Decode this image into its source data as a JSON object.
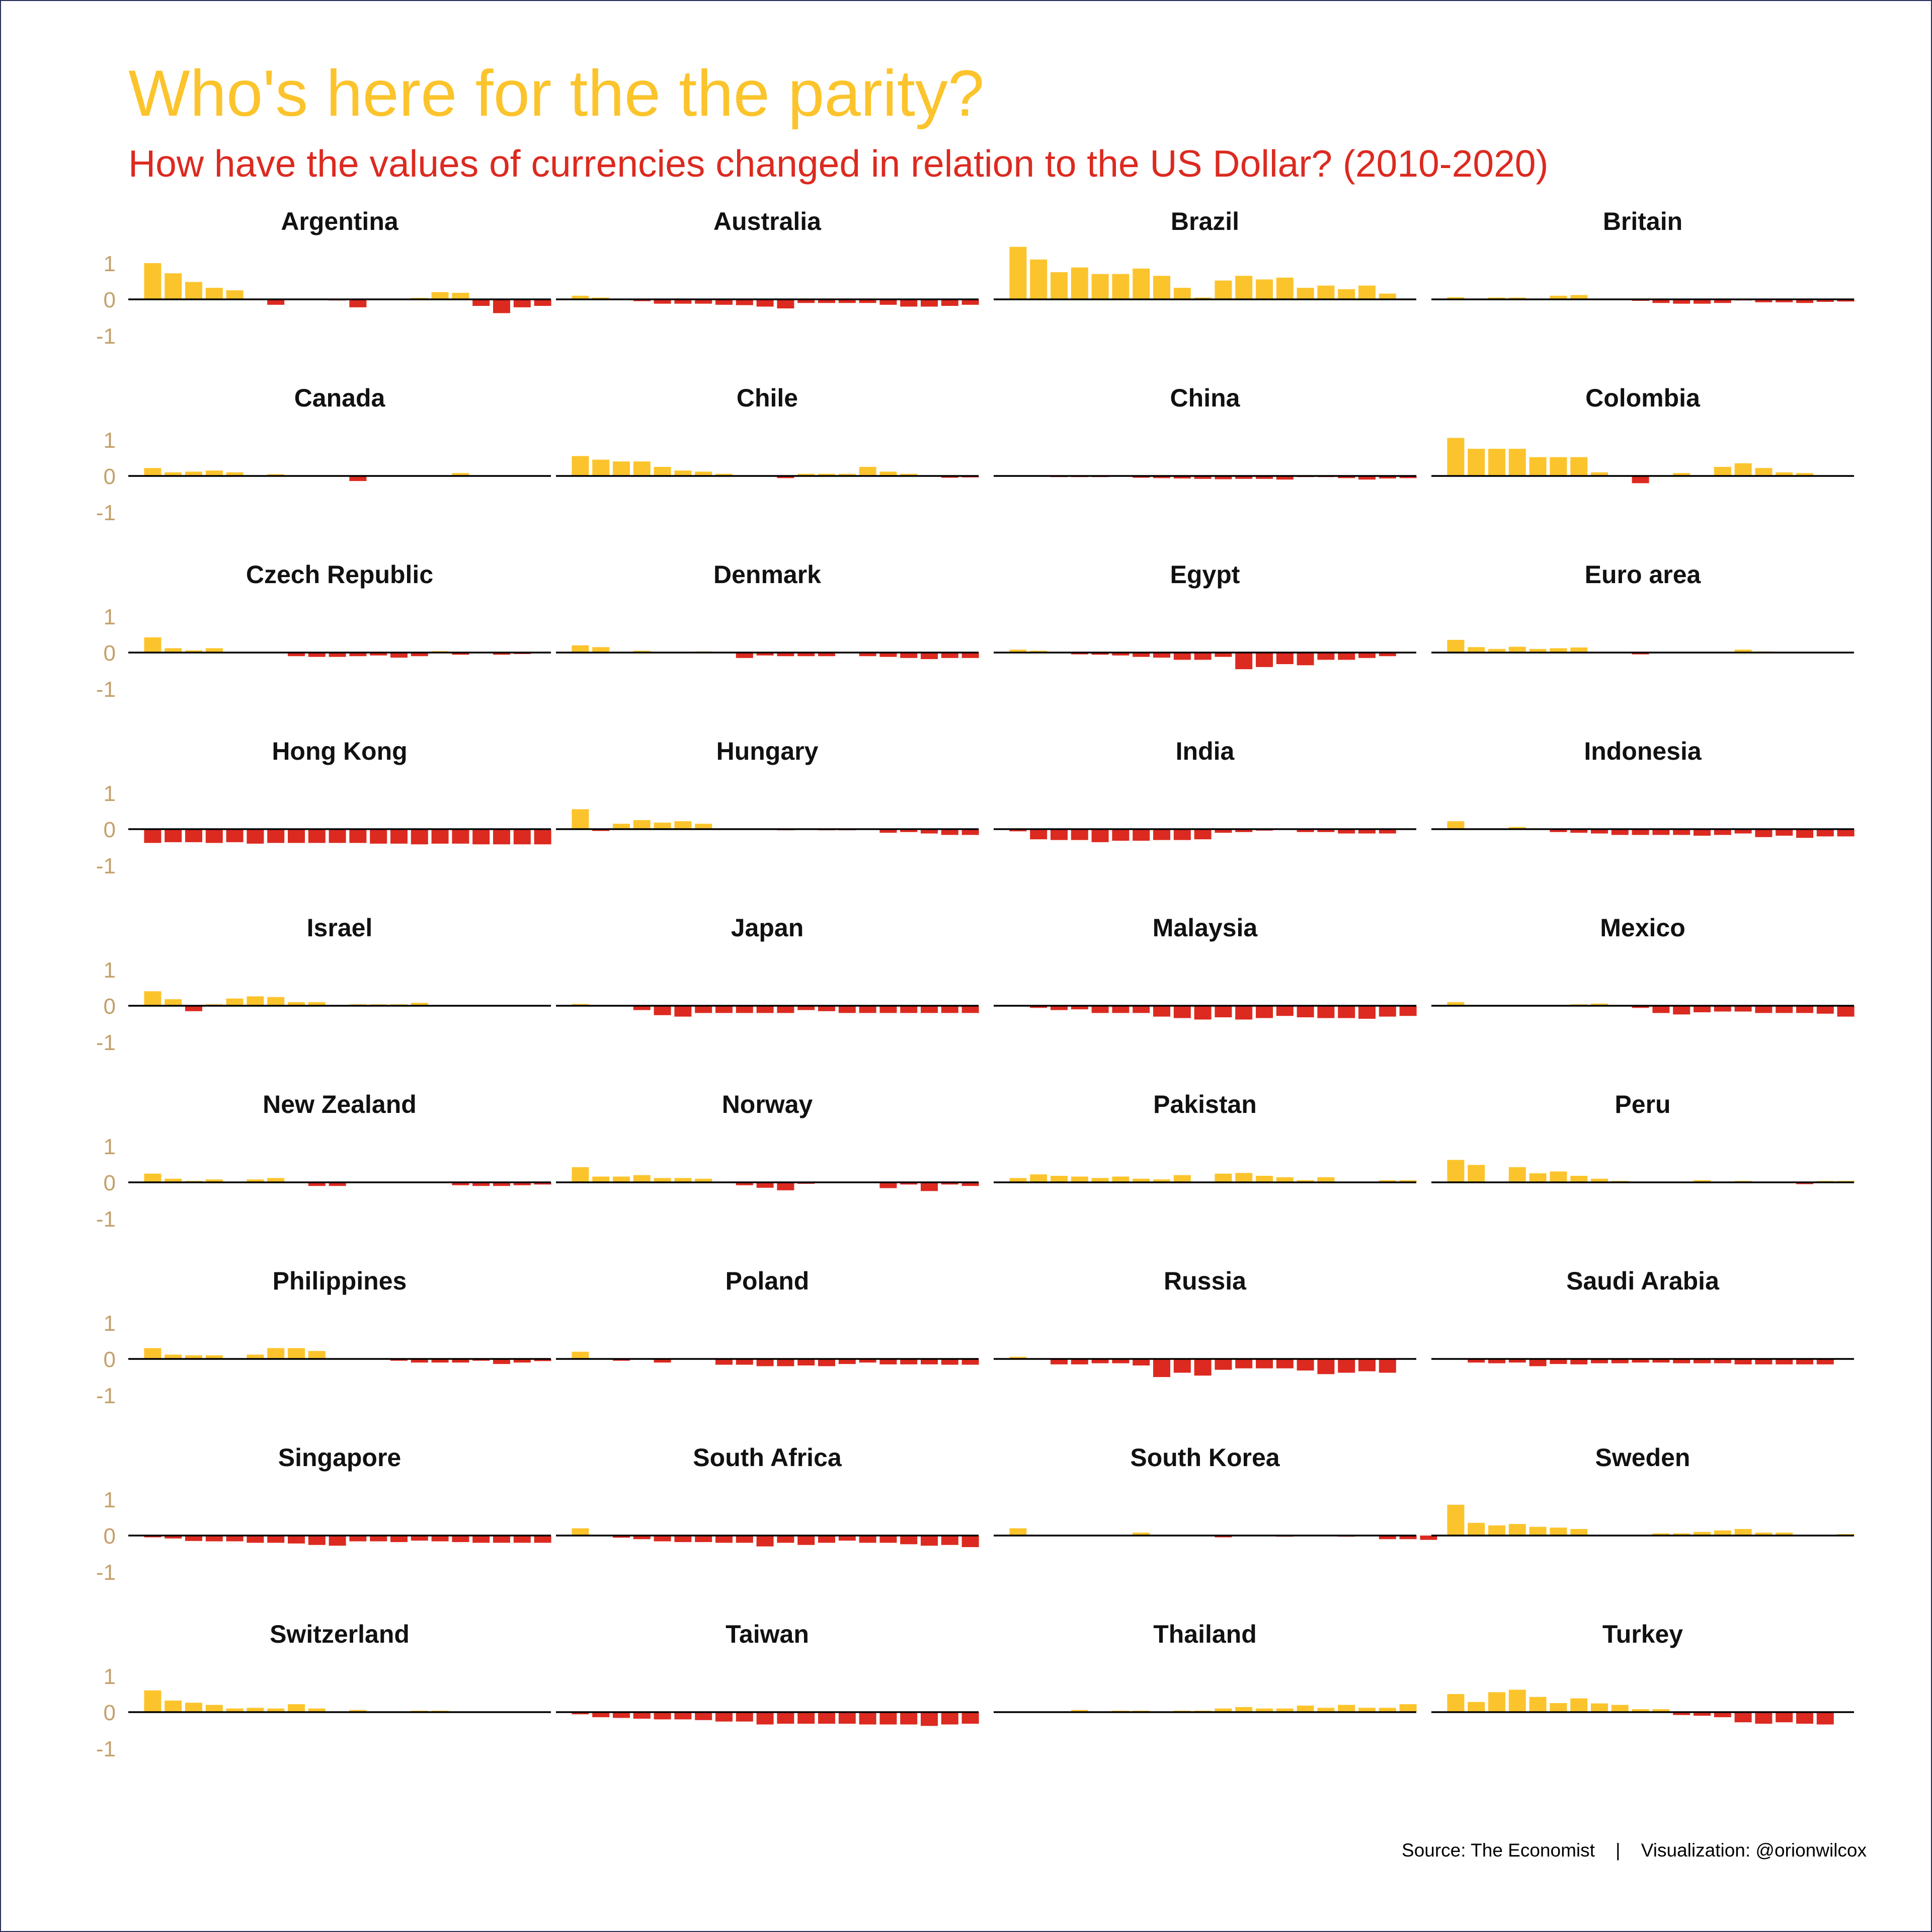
{
  "title": "Who's here for the the parity?",
  "subtitle": "How have the values of currencies changed in relation to the US Dollar? (2010-2020)",
  "caption": {
    "source": "Source: The Economist",
    "separator": "|",
    "visualization": "Visualization: @orionwilcox"
  },
  "colors": {
    "positive": "#fcc42c",
    "negative": "#dc2a20",
    "title": "#fcc42c",
    "subtitle": "#dc2a20",
    "axis_text": "#c4a06a"
  },
  "chart_data": {
    "type": "bar",
    "layout": "small-multiples 4 columns x 10 rows",
    "x_unit": "year",
    "x_start": 2011,
    "x_step": 0.5,
    "x_ticks": [
      "2012",
      "2014",
      "2016",
      "2018",
      "2020"
    ],
    "y_ticks": [
      "1",
      "0",
      "-1"
    ],
    "ylim": [
      -1,
      1
    ],
    "grid": false,
    "legend": "none",
    "bar_color_rule": "positive values yellow, negative values red",
    "panels": [
      {
        "name": "Argentina",
        "values": [
          1.0,
          0.72,
          0.48,
          0.32,
          0.25,
          0,
          -0.15,
          0,
          0,
          -0.03,
          -0.22,
          0,
          0,
          0.04,
          0.2,
          0.18,
          -0.18,
          -0.38,
          -0.22,
          -0.18
        ]
      },
      {
        "name": "Australia",
        "values": [
          0.1,
          0.05,
          0,
          -0.05,
          -0.12,
          -0.12,
          -0.12,
          -0.15,
          -0.16,
          -0.2,
          -0.25,
          -0.1,
          -0.1,
          -0.1,
          -0.1,
          -0.15,
          -0.2,
          -0.2,
          -0.18,
          -0.15
        ]
      },
      {
        "name": "Brazil",
        "values": [
          1.45,
          1.1,
          0.75,
          0.88,
          0.7,
          0.7,
          0.85,
          0.65,
          0.32,
          0.05,
          0.52,
          0.65,
          0.55,
          0.6,
          0.32,
          0.38,
          0.28,
          0.38,
          0.16
        ]
      },
      {
        "name": "Britain",
        "values": [
          0.06,
          0,
          0.05,
          0.05,
          0.02,
          0.1,
          0.12,
          0,
          0,
          -0.04,
          -0.1,
          -0.12,
          -0.12,
          -0.1,
          -0.03,
          -0.08,
          -0.08,
          -0.1,
          -0.07,
          -0.06
        ]
      },
      {
        "name": "Canada",
        "values": [
          0.22,
          0.1,
          0.12,
          0.15,
          0.1,
          0,
          0.05,
          0,
          0,
          -0.02,
          -0.14,
          0,
          0,
          0,
          0,
          0.08,
          0,
          0,
          0,
          0.02
        ]
      },
      {
        "name": "Chile",
        "values": [
          0.55,
          0.45,
          0.4,
          0.4,
          0.25,
          0.15,
          0.12,
          0.06,
          0,
          0,
          -0.06,
          0.06,
          0.06,
          0.06,
          0.25,
          0.12,
          0.06,
          0,
          -0.05,
          -0.04
        ]
      },
      {
        "name": "China",
        "values": [
          0,
          0,
          -0.03,
          -0.03,
          -0.03,
          0,
          -0.05,
          -0.06,
          -0.07,
          -0.08,
          -0.09,
          -0.08,
          -0.08,
          -0.1,
          -0.03,
          -0.03,
          -0.06,
          -0.1,
          -0.07,
          -0.06
        ]
      },
      {
        "name": "Colombia",
        "values": [
          1.05,
          0.75,
          0.75,
          0.75,
          0.52,
          0.52,
          0.52,
          0.1,
          0,
          -0.2,
          0,
          0.08,
          0,
          0.25,
          0.35,
          0.22,
          0.1,
          0.08
        ]
      },
      {
        "name": "Czech Republic",
        "values": [
          0.42,
          0.12,
          0.06,
          0.12,
          0,
          0,
          0,
          -0.1,
          -0.12,
          -0.12,
          -0.1,
          -0.08,
          -0.14,
          -0.1,
          0.04,
          -0.06,
          0,
          -0.06,
          -0.04
        ]
      },
      {
        "name": "Denmark",
        "values": [
          0.2,
          0.15,
          0,
          0.05,
          0,
          0,
          0.03,
          0,
          -0.15,
          -0.08,
          -0.1,
          -0.1,
          -0.1,
          0,
          -0.1,
          -0.12,
          -0.15,
          -0.18,
          -0.15,
          -0.15
        ]
      },
      {
        "name": "Egypt",
        "values": [
          0.08,
          0.05,
          0,
          -0.05,
          -0.06,
          -0.08,
          -0.12,
          -0.14,
          -0.2,
          -0.2,
          -0.12,
          -0.46,
          -0.4,
          -0.32,
          -0.35,
          -0.2,
          -0.2,
          -0.15,
          -0.1
        ]
      },
      {
        "name": "Euro area",
        "values": [
          0.35,
          0.15,
          0.1,
          0.16,
          0.1,
          0.12,
          0.14,
          0,
          -0.02,
          -0.05,
          0,
          0,
          0,
          0,
          0.08,
          0.03,
          0,
          0,
          0,
          0
        ]
      },
      {
        "name": "Hong Kong",
        "values": [
          -0.38,
          -0.36,
          -0.36,
          -0.38,
          -0.36,
          -0.4,
          -0.38,
          -0.38,
          -0.38,
          -0.38,
          -0.38,
          -0.4,
          -0.4,
          -0.42,
          -0.4,
          -0.4,
          -0.42,
          -0.42,
          -0.42,
          -0.42
        ]
      },
      {
        "name": "Hungary",
        "values": [
          0.55,
          -0.05,
          0.15,
          0.25,
          0.18,
          0.22,
          0.15,
          0,
          0,
          0,
          -0.03,
          0,
          -0.03,
          -0.03,
          0,
          -0.1,
          -0.08,
          -0.12,
          -0.16,
          -0.16
        ]
      },
      {
        "name": "India",
        "values": [
          -0.06,
          -0.28,
          -0.3,
          -0.3,
          -0.36,
          -0.32,
          -0.32,
          -0.3,
          -0.3,
          -0.28,
          -0.1,
          -0.08,
          -0.04,
          0,
          -0.08,
          -0.08,
          -0.12,
          -0.12,
          -0.12
        ]
      },
      {
        "name": "Indonesia",
        "values": [
          0.22,
          0,
          0,
          0.06,
          0,
          -0.08,
          -0.1,
          -0.12,
          -0.16,
          -0.16,
          -0.16,
          -0.16,
          -0.18,
          -0.16,
          -0.12,
          -0.22,
          -0.18,
          -0.24,
          -0.2,
          -0.2
        ]
      },
      {
        "name": "Israel",
        "values": [
          0.4,
          0.18,
          -0.15,
          0.04,
          0.2,
          0.26,
          0.24,
          0.1,
          0.1,
          0,
          0.04,
          0.04,
          0.04,
          0.08,
          0,
          0,
          0,
          0,
          0,
          0.02
        ]
      },
      {
        "name": "Japan",
        "values": [
          0.05,
          0,
          0,
          -0.12,
          -0.26,
          -0.3,
          -0.2,
          -0.2,
          -0.2,
          -0.2,
          -0.2,
          -0.12,
          -0.15,
          -0.2,
          -0.2,
          -0.2,
          -0.2,
          -0.2,
          -0.2,
          -0.2
        ]
      },
      {
        "name": "Malaysia",
        "values": [
          0,
          -0.06,
          -0.12,
          -0.1,
          -0.2,
          -0.2,
          -0.2,
          -0.3,
          -0.34,
          -0.38,
          -0.32,
          -0.38,
          -0.34,
          -0.28,
          -0.32,
          -0.34,
          -0.34,
          -0.36,
          -0.3,
          -0.28
        ]
      },
      {
        "name": "Mexico",
        "values": [
          0.1,
          0,
          0,
          -0.02,
          0,
          -0.02,
          0.04,
          0.06,
          0,
          -0.06,
          -0.2,
          -0.24,
          -0.18,
          -0.16,
          -0.16,
          -0.2,
          -0.2,
          -0.2,
          -0.22,
          -0.3
        ]
      },
      {
        "name": "New Zealand",
        "values": [
          0.24,
          0.1,
          0.04,
          0.08,
          0,
          0.08,
          0.12,
          0,
          -0.1,
          -0.1,
          0,
          0,
          0,
          0,
          0,
          -0.08,
          -0.1,
          -0.1,
          -0.08,
          -0.06
        ]
      },
      {
        "name": "Norway",
        "values": [
          0.42,
          0.16,
          0.16,
          0.2,
          0.12,
          0.12,
          0.1,
          0,
          -0.08,
          -0.15,
          -0.22,
          -0.04,
          0,
          -0.02,
          0,
          -0.16,
          -0.06,
          -0.24,
          -0.06,
          -0.1
        ]
      },
      {
        "name": "Pakistan",
        "values": [
          0.12,
          0.22,
          0.18,
          0.16,
          0.12,
          0.16,
          0.1,
          0.08,
          0.2,
          0.02,
          0.24,
          0.26,
          0.18,
          0.14,
          0.06,
          0.14,
          0,
          0,
          0.06,
          0.06
        ]
      },
      {
        "name": "Peru",
        "values": [
          0.62,
          0.48,
          0,
          0.42,
          0.25,
          0.3,
          0.18,
          0.1,
          0.04,
          0,
          0,
          0,
          0.06,
          0,
          0.04,
          0,
          0,
          -0.05,
          0.04,
          0.04
        ]
      },
      {
        "name": "Philippines",
        "values": [
          0.3,
          0.12,
          0.1,
          0.1,
          0,
          0.12,
          0.3,
          0.3,
          0.22,
          0,
          0,
          0,
          -0.05,
          -0.1,
          -0.1,
          -0.1,
          -0.05,
          -0.14,
          -0.1,
          -0.06
        ]
      },
      {
        "name": "Poland",
        "values": [
          0.2,
          0,
          -0.05,
          0,
          -0.1,
          0,
          0,
          -0.16,
          -0.16,
          -0.2,
          -0.2,
          -0.18,
          -0.2,
          -0.14,
          -0.1,
          -0.15,
          -0.15,
          -0.15,
          -0.16,
          -0.16
        ]
      },
      {
        "name": "Russia",
        "values": [
          0.06,
          0,
          -0.15,
          -0.15,
          -0.12,
          -0.12,
          -0.18,
          -0.5,
          -0.38,
          -0.46,
          -0.3,
          -0.26,
          -0.26,
          -0.26,
          -0.32,
          -0.42,
          -0.38,
          -0.34,
          -0.38
        ]
      },
      {
        "name": "Saudi Arabia",
        "values": [
          0,
          -0.1,
          -0.12,
          -0.1,
          -0.2,
          -0.14,
          -0.15,
          -0.12,
          -0.12,
          -0.1,
          -0.1,
          -0.12,
          -0.12,
          -0.12,
          -0.15,
          -0.15,
          -0.15,
          -0.15,
          -0.15
        ]
      },
      {
        "name": "Singapore",
        "values": [
          -0.05,
          -0.08,
          -0.15,
          -0.16,
          -0.16,
          -0.2,
          -0.2,
          -0.22,
          -0.26,
          -0.28,
          -0.16,
          -0.16,
          -0.18,
          -0.14,
          -0.16,
          -0.18,
          -0.2,
          -0.2,
          -0.2,
          -0.2
        ]
      },
      {
        "name": "South Africa",
        "values": [
          0.2,
          0,
          -0.06,
          -0.1,
          -0.16,
          -0.18,
          -0.18,
          -0.2,
          -0.2,
          -0.3,
          -0.2,
          -0.26,
          -0.2,
          -0.14,
          -0.2,
          -0.2,
          -0.24,
          -0.28,
          -0.26,
          -0.32
        ]
      },
      {
        "name": "South Korea",
        "values": [
          0.2,
          0,
          0,
          0,
          0,
          0,
          0.08,
          0,
          0,
          0,
          -0.05,
          0,
          0,
          -0.03,
          0,
          0,
          -0.03,
          0,
          -0.1,
          -0.1,
          -0.12
        ]
      },
      {
        "name": "Sweden",
        "values": [
          0.85,
          0.35,
          0.28,
          0.32,
          0.24,
          0.22,
          0.18,
          0,
          0,
          0,
          0.06,
          0.06,
          0.1,
          0.14,
          0.18,
          0.08,
          0.08,
          0,
          0,
          0.04
        ]
      },
      {
        "name": "Switzerland",
        "values": [
          0.6,
          0.32,
          0.26,
          0.2,
          0.1,
          0.12,
          0.1,
          0.22,
          0.1,
          0,
          0.06,
          0,
          0,
          0.04,
          0.04,
          0,
          0,
          0,
          0,
          0
        ]
      },
      {
        "name": "Taiwan",
        "values": [
          -0.06,
          -0.14,
          -0.16,
          -0.18,
          -0.2,
          -0.2,
          -0.22,
          -0.26,
          -0.26,
          -0.34,
          -0.32,
          -0.32,
          -0.32,
          -0.32,
          -0.34,
          -0.34,
          -0.34,
          -0.38,
          -0.34,
          -0.32
        ]
      },
      {
        "name": "Thailand",
        "values": [
          0.02,
          0,
          0,
          0.06,
          0,
          0.04,
          0.04,
          0.02,
          0.04,
          0.04,
          0.1,
          0.14,
          0.1,
          0.1,
          0.18,
          0.12,
          0.2,
          0.12,
          0.12,
          0.22
        ]
      },
      {
        "name": "Turkey",
        "values": [
          0.5,
          0.28,
          0.55,
          0.62,
          0.42,
          0.25,
          0.38,
          0.24,
          0.2,
          0.08,
          0.08,
          -0.08,
          -0.1,
          -0.14,
          -0.28,
          -0.32,
          -0.28,
          -0.32,
          -0.34
        ]
      }
    ]
  }
}
